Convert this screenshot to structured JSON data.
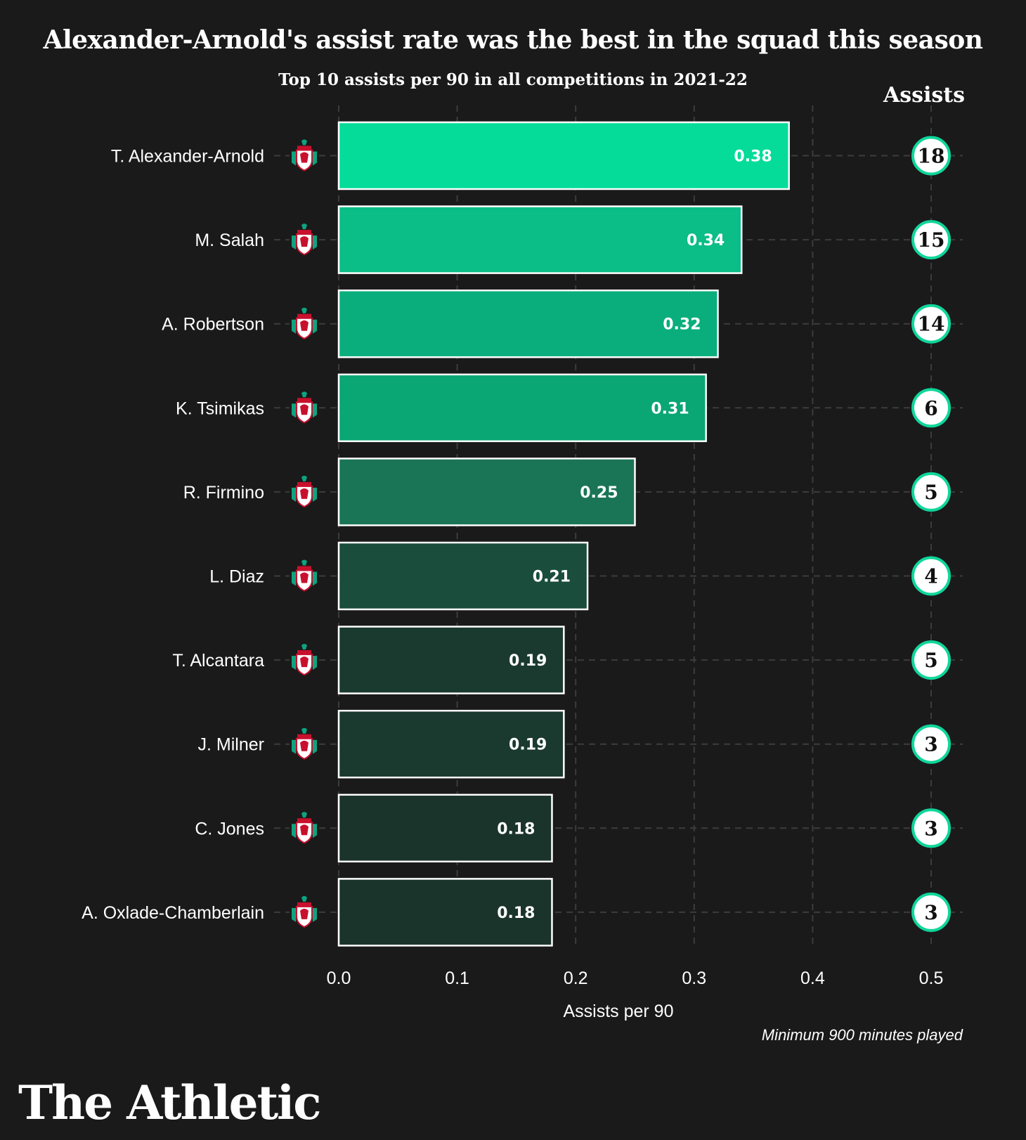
{
  "title": "Alexander-Arnold's assist rate was the best in the squad this season",
  "subtitle": "Top 10 assists per 90 in all competitions in 2021-22",
  "assists_header": "Assists",
  "note": "Minimum 900 minutes played",
  "brand": "The Athletic",
  "crest_icon": "liverpool-crest-icon",
  "chart_data": {
    "type": "bar",
    "orientation": "horizontal",
    "categories": [
      "T. Alexander-Arnold",
      "M. Salah",
      "A. Robertson",
      "K. Tsimikas",
      "R. Firmino",
      "L. Diaz",
      "T. Alcantara",
      "J. Milner",
      "C. Jones",
      "A. Oxlade-Chamberlain"
    ],
    "values": [
      0.38,
      0.34,
      0.32,
      0.31,
      0.25,
      0.21,
      0.19,
      0.19,
      0.18,
      0.18
    ],
    "value_labels": [
      "0.38",
      "0.34",
      "0.32",
      "0.31",
      "0.25",
      "0.21",
      "0.19",
      "0.19",
      "0.18",
      "0.18"
    ],
    "assists": [
      "18",
      "15",
      "14",
      "6",
      "5",
      "4",
      "5",
      "3",
      "3",
      "3"
    ],
    "bar_colors": [
      "#05dc9a",
      "#0bbd86",
      "#0aae7c",
      "#0aa674",
      "#1a7556",
      "#1a4d3c",
      "#1b3a2f",
      "#1b3a2f",
      "#1b342b",
      "#1b342b"
    ],
    "xlabel": "Assists per 90",
    "xlim": [
      0,
      0.5
    ],
    "xticks": [
      "0.0",
      "0.1",
      "0.2",
      "0.3",
      "0.4",
      "0.5"
    ],
    "grid": true,
    "accent_color": "#0fd69a"
  }
}
